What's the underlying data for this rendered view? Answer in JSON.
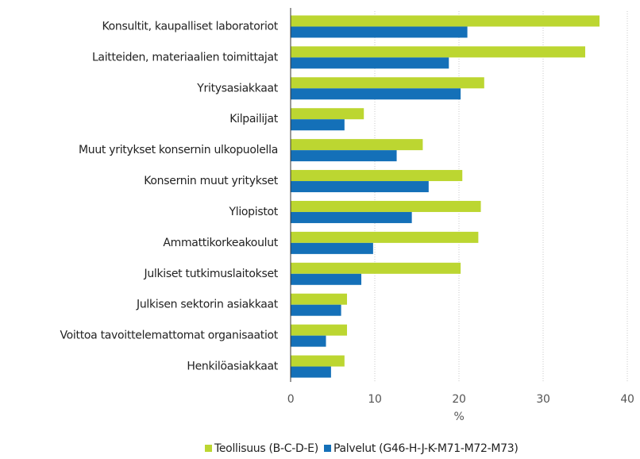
{
  "chart_data": {
    "type": "barh",
    "categories": [
      "Konsultit, kaupalliset laboratoriot",
      "Laitteiden, materiaalien toimittajat",
      "Yritysasiakkaat",
      "Kilpailijat",
      "Muut yritykset konsernin ulkopuolella",
      "Konsernin muut yritykset",
      "Yliopistot",
      "Ammattikorkeakoulut",
      "Julkiset tutkimuslaitokset",
      "Julkisen sektorin asiakkaat",
      "Voittoa tavoittelemattomat organisaatiot",
      "Henkilöasiakkaat"
    ],
    "series": [
      {
        "name": "Teollisuus (B-C-D-E)",
        "color": "#bcd631",
        "values": [
          36.7,
          35.0,
          23.0,
          8.7,
          15.7,
          20.4,
          22.6,
          22.3,
          20.2,
          6.7,
          6.7,
          6.4
        ]
      },
      {
        "name": "Palvelut (G46-H-J-K-M71-M72-M73)",
        "color": "#1470b8",
        "values": [
          21.0,
          18.8,
          20.2,
          6.4,
          12.6,
          16.4,
          14.4,
          9.8,
          8.4,
          6.0,
          4.2,
          4.8
        ]
      }
    ],
    "xlabel": "%",
    "xlim": [
      0,
      40
    ],
    "xticks": [
      0,
      10,
      20,
      30,
      40
    ],
    "grid": true,
    "legend": "bottom"
  }
}
